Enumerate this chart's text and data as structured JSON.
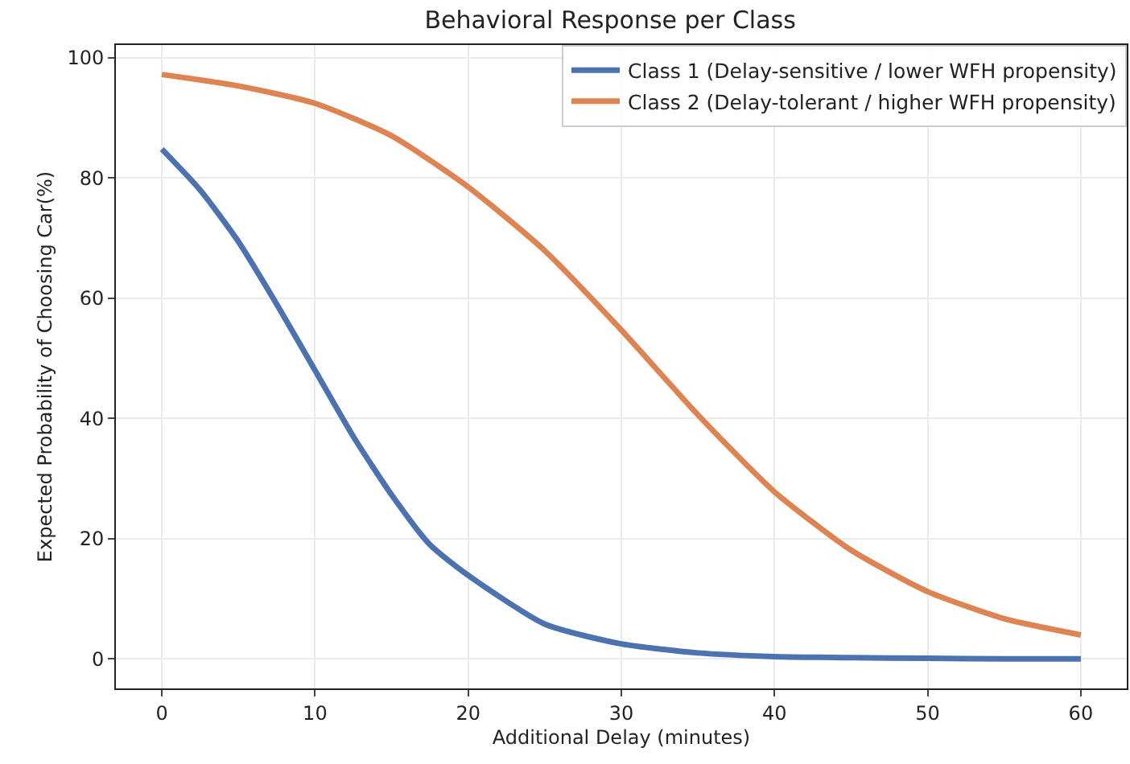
{
  "chart_data": {
    "type": "line",
    "title": "Behavioral Response per Class",
    "xlabel": "Additional Delay (minutes)",
    "ylabel": "Expected Probability of Choosing Car(%)",
    "xlim": [
      -3,
      63
    ],
    "xticks": [
      0,
      10,
      20,
      30,
      40,
      50,
      60
    ],
    "ylim": [
      -4.9,
      102.1
    ],
    "yticks": [
      0,
      20,
      40,
      60,
      80,
      100
    ],
    "grid": true,
    "legend": "top right",
    "marker": "none",
    "line_style": "solid",
    "series": [
      {
        "name": "Class 1 (Delay-sensitive / lower WFH propensity)",
        "color": "#4c72b0",
        "x": [
          0,
          2.5,
          5,
          7.5,
          10,
          12.5,
          15,
          17.5,
          20,
          25,
          30,
          35,
          40,
          45,
          50,
          55,
          60
        ],
        "values": [
          84.8,
          78,
          69.4,
          59,
          48,
          37,
          27.3,
          19,
          13.9,
          5.8,
          2.5,
          1.0,
          0.4,
          0.2,
          0.1,
          0,
          0
        ]
      },
      {
        "name": "Class 2 (Delay-tolerant / higher WFH propensity)",
        "color": "#dd8452",
        "x": [
          0,
          5,
          10,
          15,
          20,
          25,
          30,
          35,
          40,
          45,
          50,
          55,
          60
        ],
        "values": [
          97.2,
          95.3,
          92.4,
          87,
          78.5,
          67.9,
          54.7,
          40.6,
          27.8,
          18.1,
          11.2,
          6.7,
          4.0
        ]
      }
    ]
  }
}
